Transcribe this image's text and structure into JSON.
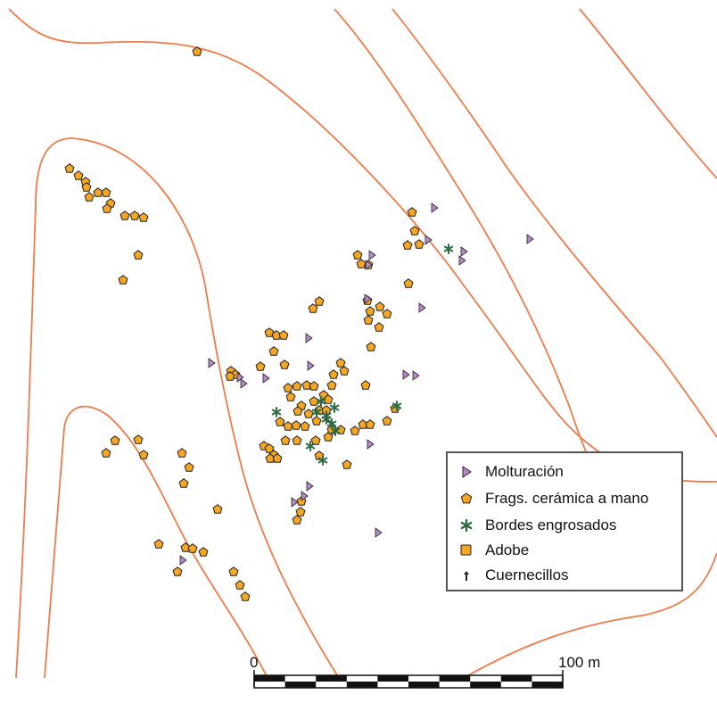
{
  "map": {
    "scale_bar": {
      "start_label": "0",
      "end_label": "100 m",
      "segments": 10
    },
    "colors": {
      "contour": "#f07a4a",
      "molturacion": "#b58ac6",
      "ceramica": "#f5a623",
      "bordes": "#2f6b45",
      "outline": "#222222"
    }
  },
  "legend": {
    "items": [
      {
        "key": "molturacion",
        "label": "Molturación",
        "symbol": "triangle-icon"
      },
      {
        "key": "ceramica",
        "label": "Frags. cerámica a mano",
        "symbol": "pentagon-icon"
      },
      {
        "key": "bordes",
        "label": "Bordes engrosados",
        "symbol": "star-icon"
      },
      {
        "key": "adobe",
        "label": "Adobe",
        "symbol": "square-icon"
      },
      {
        "key": "cuernecillos",
        "label": "Cuernecillos",
        "symbol": "horn-icon"
      }
    ]
  }
}
